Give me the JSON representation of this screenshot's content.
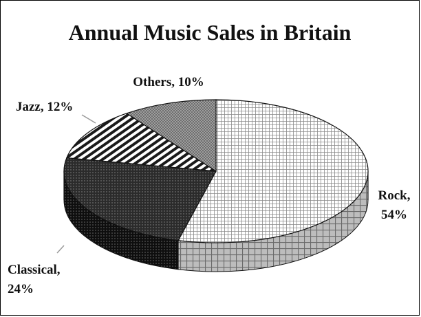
{
  "chart_data": {
    "type": "pie",
    "title": "Annual Music Sales in Britain",
    "slices": [
      {
        "label": "Rock",
        "value": 54,
        "label_lines": [
          "Rock,",
          "54%"
        ],
        "pattern": "grid-light"
      },
      {
        "label": "Classical",
        "value": 24,
        "label_lines": [
          "Classical,",
          "24%"
        ],
        "pattern": "dots-dark"
      },
      {
        "label": "Jazz",
        "value": 12,
        "label_lines": [
          "Jazz, 12%"
        ],
        "pattern": "diagonal-stripes"
      },
      {
        "label": "Others",
        "value": 10,
        "label_lines": [
          "Others, 10%"
        ],
        "pattern": "crosshatch-grey"
      }
    ],
    "style": "3d",
    "legend": "none",
    "colors": {
      "line": "#111111",
      "light": "#ffffff",
      "dark": "#222222",
      "grey": "#9a9a9a"
    }
  }
}
